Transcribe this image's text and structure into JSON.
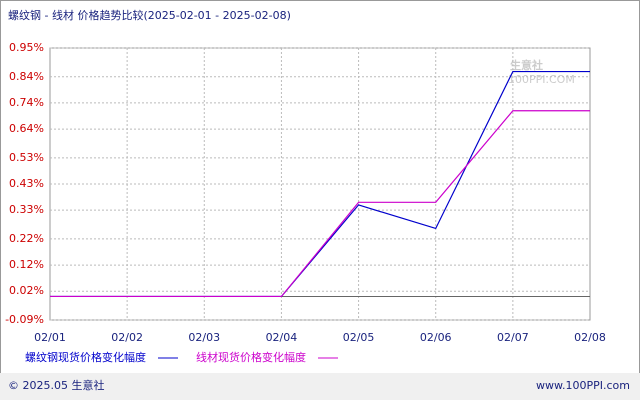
{
  "chart_data": {
    "type": "line",
    "title": "螺纹钢 - 线材 价格趋势比较(2025-02-01 - 2025-02-08)",
    "categories": [
      "02/01",
      "02/02",
      "02/03",
      "02/04",
      "02/05",
      "02/06",
      "02/07",
      "02/08"
    ],
    "series": [
      {
        "name": "螺纹钢现货价格变化幅度",
        "color": "#0000cc",
        "values": [
          0,
          0,
          0,
          0,
          0.35,
          0.26,
          0.86,
          0.86
        ]
      },
      {
        "name": "线材现货价格变化幅度",
        "color": "#cc00cc",
        "values": [
          0,
          0,
          0,
          0,
          0.36,
          0.36,
          0.71,
          0.71
        ]
      }
    ],
    "ylim": [
      -0.09,
      0.95
    ],
    "yticks": [
      {
        "value": -0.09,
        "label": "-0.09%"
      },
      {
        "value": 0.02,
        "label": "0.02%"
      },
      {
        "value": 0.12,
        "label": "0.12%"
      },
      {
        "value": 0.22,
        "label": "0.22%"
      },
      {
        "value": 0.33,
        "label": "0.33%"
      },
      {
        "value": 0.43,
        "label": "0.43%"
      },
      {
        "value": 0.53,
        "label": "0.53%"
      },
      {
        "value": 0.64,
        "label": "0.64%"
      },
      {
        "value": 0.74,
        "label": "0.74%"
      },
      {
        "value": 0.84,
        "label": "0.84%"
      },
      {
        "value": 0.95,
        "label": "0.95%"
      }
    ],
    "grid": true,
    "watermark": {
      "name": "生意社",
      "site": "100PPI.COM"
    },
    "footer": {
      "left": "© 2025.05 生意社",
      "right": "www.100PPI.com"
    }
  }
}
